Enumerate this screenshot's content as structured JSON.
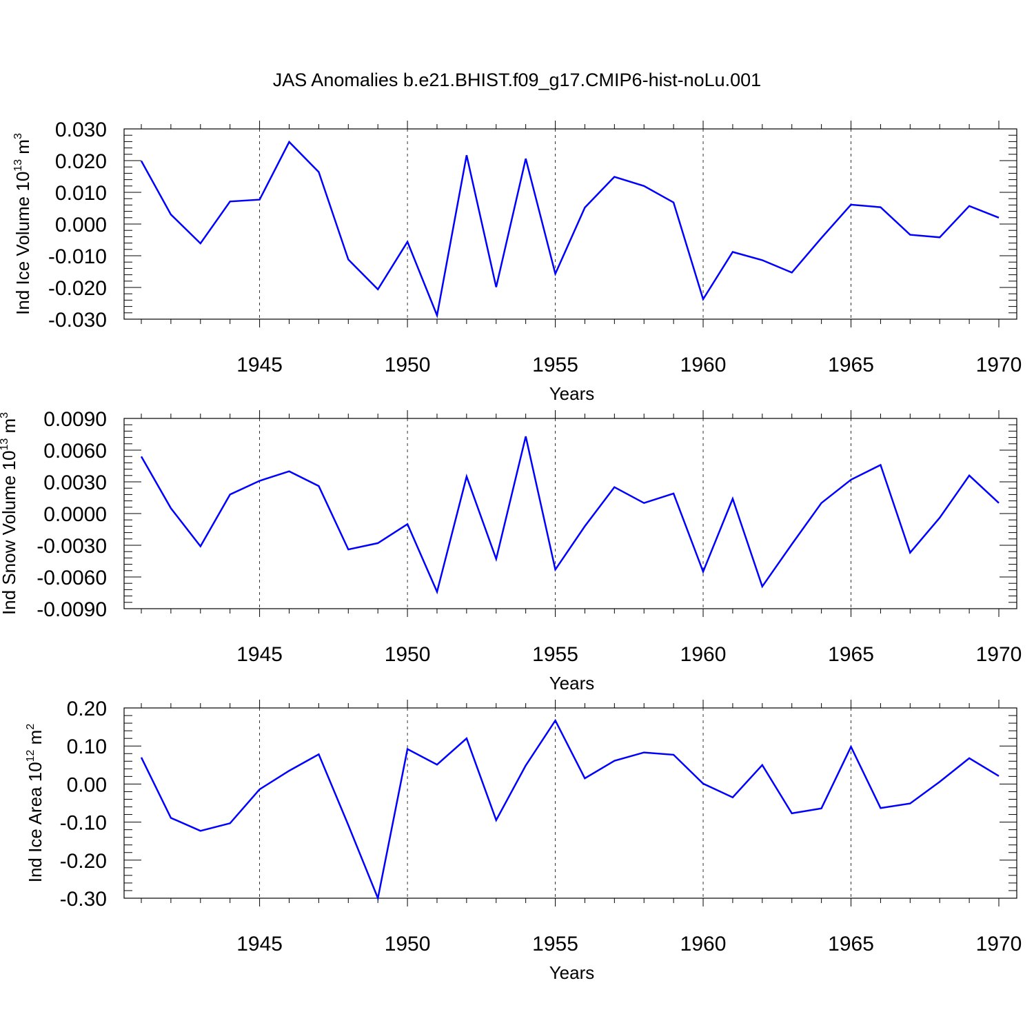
{
  "figure": {
    "title": "JAS Anomalies b.e21.BHIST.f09_g17.CMIP6-hist-noLu.001",
    "colors": {
      "line": "#0000ff",
      "axis": "#000000",
      "grid": "#000000"
    }
  },
  "chart_data": [
    {
      "type": "line",
      "ylabel": "Ind Ice Volume 10",
      "ylabel_exp": "13",
      "ylabel_unit": "m",
      "ylabel_unit_exp": "3",
      "xlabel": "Years",
      "xlim": [
        1941,
        1970
      ],
      "ylim": [
        -0.03,
        0.03
      ],
      "yticks": [
        -0.03,
        -0.02,
        -0.01,
        0.0,
        0.01,
        0.02,
        0.03
      ],
      "ytick_labels": [
        "-0.030",
        "-0.020",
        "-0.010",
        "0.000",
        "0.010",
        "0.020",
        "0.030"
      ],
      "xticks": [
        1945,
        1950,
        1955,
        1960,
        1965,
        1970
      ],
      "xtick_labels": [
        "1945",
        "1950",
        "1955",
        "1960",
        "1965",
        "1970"
      ],
      "grid": "vertical dashed at major x ticks",
      "x": [
        1941,
        1942,
        1943,
        1944,
        1945,
        1946,
        1947,
        1948,
        1949,
        1950,
        1951,
        1952,
        1953,
        1954,
        1955,
        1956,
        1957,
        1958,
        1959,
        1960,
        1961,
        1962,
        1963,
        1964,
        1965,
        1966,
        1967,
        1968,
        1969,
        1970
      ],
      "values": [
        0.0199,
        0.003,
        -0.0061,
        0.0071,
        0.0077,
        0.0259,
        0.0164,
        -0.0112,
        -0.0206,
        -0.0056,
        -0.0288,
        0.0217,
        -0.0199,
        0.0206,
        -0.0157,
        0.0052,
        0.0149,
        0.012,
        0.0068,
        -0.0237,
        -0.0088,
        -0.0114,
        -0.0153,
        -0.0044,
        0.0061,
        0.0053,
        -0.0034,
        -0.0042,
        0.0057,
        0.002
      ]
    },
    {
      "type": "line",
      "ylabel": "Ind Snow Volume 10",
      "ylabel_exp": "13",
      "ylabel_unit": "m",
      "ylabel_unit_exp": "3",
      "xlabel": "Years",
      "xlim": [
        1941,
        1970
      ],
      "ylim": [
        -0.009,
        0.009
      ],
      "yticks": [
        -0.009,
        -0.006,
        -0.003,
        0.0,
        0.003,
        0.006,
        0.009
      ],
      "ytick_labels": [
        "-0.0090",
        "-0.0060",
        "-0.0030",
        "0.0000",
        "0.0030",
        "0.0060",
        "0.0090"
      ],
      "xticks": [
        1945,
        1950,
        1955,
        1960,
        1965,
        1970
      ],
      "xtick_labels": [
        "1945",
        "1950",
        "1955",
        "1960",
        "1965",
        "1970"
      ],
      "grid": "vertical dashed at major x ticks",
      "x": [
        1941,
        1942,
        1943,
        1944,
        1945,
        1946,
        1947,
        1948,
        1949,
        1950,
        1951,
        1952,
        1953,
        1954,
        1955,
        1956,
        1957,
        1958,
        1959,
        1960,
        1961,
        1962,
        1963,
        1964,
        1965,
        1966,
        1967,
        1968,
        1969,
        1970
      ],
      "values": [
        0.0054,
        0.0005,
        -0.0031,
        0.0018,
        0.0031,
        0.004,
        0.0026,
        -0.0034,
        -0.0028,
        -0.001,
        -0.0074,
        0.0035,
        -0.0043,
        0.0073,
        -0.0053,
        -0.0012,
        0.0025,
        0.001,
        0.0019,
        -0.0055,
        0.0014,
        -0.0069,
        -0.0029,
        0.001,
        0.0032,
        0.0046,
        -0.0037,
        -0.0004,
        0.0036,
        0.001
      ]
    },
    {
      "type": "line",
      "ylabel": "Ind Ice Area 10",
      "ylabel_exp": "12",
      "ylabel_unit": "m",
      "ylabel_unit_exp": "2",
      "xlabel": "Years",
      "xlim": [
        1941,
        1970
      ],
      "ylim": [
        -0.3,
        0.2
      ],
      "yticks": [
        -0.3,
        -0.2,
        -0.1,
        0.0,
        0.1,
        0.2
      ],
      "ytick_labels": [
        "-0.30",
        "-0.20",
        "-0.10",
        "0.00",
        "0.10",
        "0.20"
      ],
      "xticks": [
        1945,
        1950,
        1955,
        1960,
        1965,
        1970
      ],
      "xtick_labels": [
        "1945",
        "1950",
        "1955",
        "1960",
        "1965",
        "1970"
      ],
      "grid": "vertical dashed at major x ticks",
      "x": [
        1941,
        1942,
        1943,
        1944,
        1945,
        1946,
        1947,
        1948,
        1949,
        1950,
        1951,
        1952,
        1953,
        1954,
        1955,
        1956,
        1957,
        1958,
        1959,
        1960,
        1961,
        1962,
        1963,
        1964,
        1965,
        1966,
        1967,
        1968,
        1969,
        1970
      ],
      "values": [
        0.07,
        -0.089,
        -0.123,
        -0.103,
        -0.014,
        0.035,
        0.078,
        -0.108,
        -0.3,
        0.092,
        0.051,
        0.12,
        -0.095,
        0.049,
        0.167,
        0.015,
        0.061,
        0.083,
        0.077,
        0.001,
        -0.035,
        0.05,
        -0.077,
        -0.064,
        0.098,
        -0.063,
        -0.051,
        0.006,
        0.068,
        0.021
      ]
    }
  ]
}
